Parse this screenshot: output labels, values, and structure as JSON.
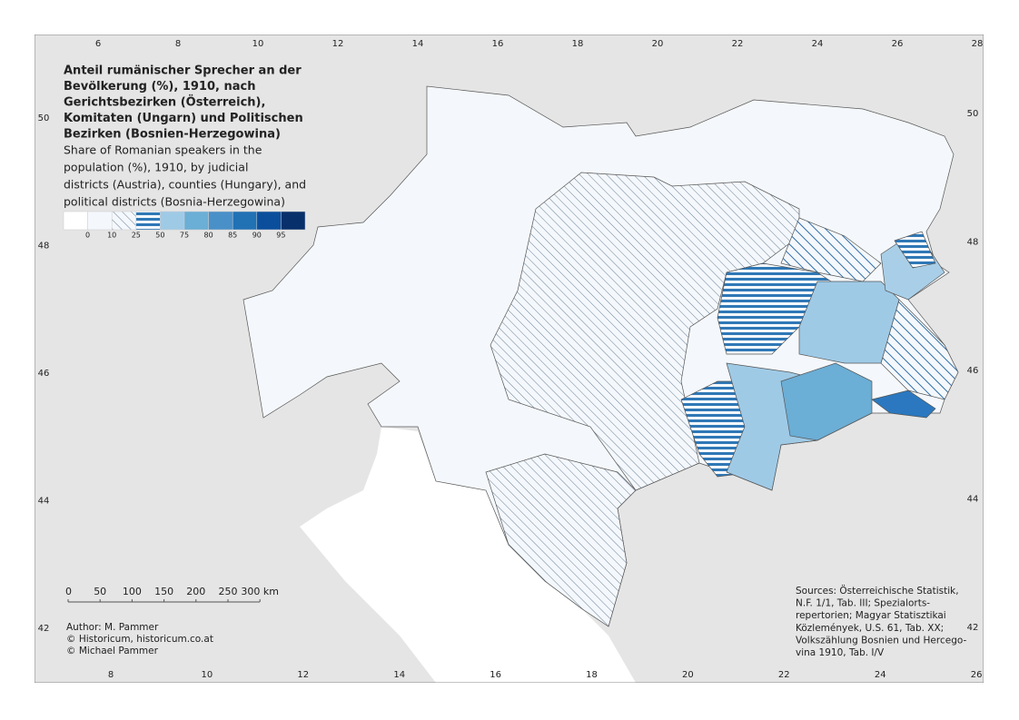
{
  "title_lines": [
    "Anteil rumänischer Sprecher an der",
    "Bevölkerung (%), 1910, nach",
    "Gerichtsbezirken (Österreich),",
    "Komitaten (Ungarn) und Politischen",
    "Bezirken (Bosnien-Herzegowina)"
  ],
  "subtitle_lines": [
    "Share of Romanian speakers in the",
    "population (%), 1910, by judicial",
    "districts (Austria), counties (Hungary), and",
    "political districts (Bosnia-Herzegowina)"
  ],
  "legend": {
    "fills": [
      "#ffffff",
      "#f4f8fc",
      "hatch-diag",
      "hatch-horiz",
      "#9fcae6",
      "#6baed6",
      "#4a90c8",
      "#2171b5",
      "#0b4f9c",
      "#08306b"
    ],
    "labels": [
      0,
      10,
      25,
      50,
      75,
      80,
      85,
      90,
      95
    ]
  },
  "frame": {
    "top_ticks": [
      6,
      8,
      10,
      12,
      14,
      16,
      18,
      20,
      22,
      24,
      26,
      28
    ],
    "bottom_ticks": [
      8,
      10,
      12,
      14,
      16,
      18,
      20,
      22,
      24,
      26
    ],
    "left_ticks": [
      50,
      48,
      46,
      44,
      42
    ],
    "right_ticks": [
      50,
      48,
      46,
      44,
      42
    ]
  },
  "scale_bar": [
    "0",
    "50",
    "100",
    "150",
    "200",
    "250",
    "300 km"
  ],
  "credits": [
    "Author: M. Pammer",
    "© Historicum, historicum.co.at",
    "© Michael Pammer"
  ],
  "sources": [
    "Sources: Österreichische Statistik,",
    "N.F. 1/1, Tab. III; Spezialorts-",
    "repertorien; Magyar Statisztikai",
    "Közlemények, U.S. 61, Tab. XX;",
    "Volkszählung Bosnien und Hercego-",
    "vina 1910, Tab. I/V"
  ]
}
